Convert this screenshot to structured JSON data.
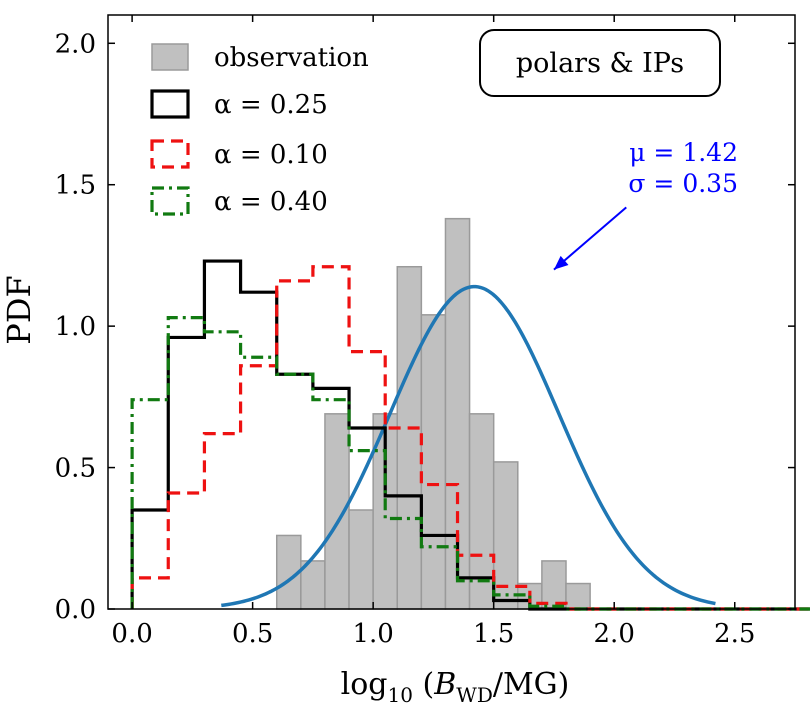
{
  "chart_data": {
    "type": "bar",
    "title": "",
    "xlabel": "log10 (B_WD / MG)",
    "ylabel": "PDF",
    "xlim": [
      -0.1,
      2.75
    ],
    "ylim": [
      0.0,
      2.1
    ],
    "x_ticks": [
      {
        "value": 0.0,
        "label": "0.0"
      },
      {
        "value": 0.5,
        "label": "0.5"
      },
      {
        "value": 1.0,
        "label": "1.0"
      },
      {
        "value": 1.5,
        "label": "1.5"
      },
      {
        "value": 2.0,
        "label": "2.0"
      },
      {
        "value": 2.5,
        "label": "2.5"
      }
    ],
    "y_ticks": [
      {
        "value": 0.0,
        "label": "0.0"
      },
      {
        "value": 0.5,
        "label": "0.5"
      },
      {
        "value": 1.0,
        "label": "1.0"
      },
      {
        "value": 1.5,
        "label": "1.5"
      },
      {
        "value": 2.0,
        "label": "2.0"
      }
    ],
    "annotation_box": "polars & IPs",
    "observation": {
      "name": "observation",
      "color": "#c0c0c0",
      "bins": [
        {
          "x0": 0.6,
          "x1": 0.7,
          "value": 0.26
        },
        {
          "x0": 0.7,
          "x1": 0.8,
          "value": 0.17
        },
        {
          "x0": 0.8,
          "x1": 0.9,
          "value": 0.69
        },
        {
          "x0": 0.9,
          "x1": 1.0,
          "value": 0.35
        },
        {
          "x0": 1.0,
          "x1": 1.1,
          "value": 0.69
        },
        {
          "x0": 1.1,
          "x1": 1.2,
          "value": 1.21
        },
        {
          "x0": 1.2,
          "x1": 1.3,
          "value": 1.04
        },
        {
          "x0": 1.3,
          "x1": 1.4,
          "value": 1.38
        },
        {
          "x0": 1.4,
          "x1": 1.5,
          "value": 0.69
        },
        {
          "x0": 1.5,
          "x1": 1.6,
          "value": 0.52
        },
        {
          "x0": 1.6,
          "x1": 1.7,
          "value": 0.09
        },
        {
          "x0": 1.7,
          "x1": 1.8,
          "value": 0.17
        },
        {
          "x0": 1.8,
          "x1": 1.9,
          "value": 0.09
        }
      ]
    },
    "series": [
      {
        "name": "α = 0.25",
        "color": "#000000",
        "dash": "solid",
        "edges": [
          0.0,
          0.15,
          0.3,
          0.45,
          0.6,
          0.75,
          0.9,
          1.05,
          1.2,
          1.35,
          1.5,
          1.65,
          1.8,
          1.95,
          2.1,
          2.25,
          2.4,
          2.55,
          2.7,
          2.85
        ],
        "values": [
          0.35,
          0.96,
          1.23,
          1.12,
          0.83,
          0.78,
          0.64,
          0.4,
          0.26,
          0.11,
          0.03,
          0.0,
          0.0,
          0.0,
          0.0,
          0.0,
          0.0,
          0.0,
          0.0
        ]
      },
      {
        "name": "α = 0.10",
        "color": "#ee1111",
        "dash": "dashed",
        "edges": [
          0.0,
          0.15,
          0.3,
          0.45,
          0.6,
          0.75,
          0.9,
          1.05,
          1.2,
          1.35,
          1.5,
          1.65,
          1.8,
          1.95,
          2.1,
          2.25,
          2.4,
          2.55,
          2.7,
          2.85
        ],
        "values": [
          0.11,
          0.41,
          0.62,
          0.86,
          1.16,
          1.21,
          0.91,
          0.64,
          0.44,
          0.19,
          0.08,
          0.02,
          0.0,
          0.0,
          0.0,
          0.0,
          0.0,
          0.0,
          0.0
        ]
      },
      {
        "name": "α = 0.40",
        "color": "#117a11",
        "dash": "dashdot",
        "edges": [
          0.0,
          0.15,
          0.3,
          0.45,
          0.6,
          0.75,
          0.9,
          1.05,
          1.2,
          1.35,
          1.5,
          1.65,
          1.8,
          1.95,
          2.1,
          2.25,
          2.4,
          2.55,
          2.7,
          2.85
        ],
        "values": [
          0.74,
          1.03,
          0.98,
          0.89,
          0.83,
          0.74,
          0.56,
          0.32,
          0.22,
          0.1,
          0.05,
          0.01,
          0.0,
          0.0,
          0.0,
          0.0,
          0.0,
          0.0,
          0.0
        ]
      }
    ],
    "gaussian_fit": {
      "mu": 1.42,
      "sigma": 0.35,
      "x_range": [
        0.37,
        2.42
      ],
      "color": "#1f77b4",
      "label_mu": "μ = 1.42",
      "label_sigma": "σ = 0.35",
      "label_color": "#0000ff",
      "arrow_target": [
        1.75,
        1.2
      ],
      "arrow_source": [
        2.05,
        1.42
      ]
    }
  }
}
